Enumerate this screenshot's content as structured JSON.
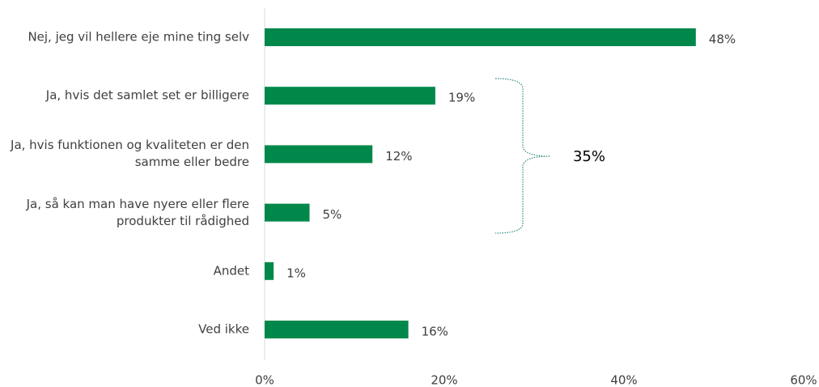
{
  "chart_data": {
    "type": "bar",
    "orientation": "horizontal",
    "categories": [
      "Nej, jeg vil hellere eje mine ting selv",
      "Ja, hvis det samlet set er billigere",
      "Ja, hvis funktionen og kvaliteten er den samme eller bedre",
      "Ja, så kan man have nyere eller flere produkter til rådighed",
      "Andet",
      "Ved ikke"
    ],
    "values": [
      48,
      19,
      12,
      5,
      1,
      16
    ],
    "value_labels": [
      "48%",
      "19%",
      "12%",
      "5%",
      "1%",
      "16%"
    ],
    "color": "#00884a",
    "xlim": [
      0,
      60
    ],
    "xticks": [
      {
        "value": 0,
        "label": "0%"
      },
      {
        "value": 20,
        "label": "20%"
      },
      {
        "value": 40,
        "label": "40%"
      },
      {
        "value": 60,
        "label": "60%"
      }
    ],
    "annotation": "35%"
  }
}
